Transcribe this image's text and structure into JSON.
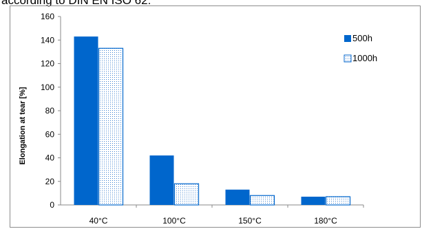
{
  "caption": "according to DIN EN ISO 62:",
  "chart_data": {
    "type": "bar",
    "title": "",
    "xlabel": "",
    "ylabel": "Elongation at tear [%]",
    "categories": [
      "40°C",
      "100°C",
      "150°C",
      "180°C"
    ],
    "series": [
      {
        "name": "500h",
        "values": [
          143,
          42,
          13,
          7
        ],
        "color": "#0066cc",
        "pattern": "solid"
      },
      {
        "name": "1000h",
        "values": [
          133,
          18,
          8,
          7
        ],
        "color": "#0066cc",
        "pattern": "dotted"
      }
    ],
    "ylim": [
      0,
      160
    ],
    "yticks": [
      0,
      20,
      40,
      60,
      80,
      100,
      120,
      140,
      160
    ],
    "grid": false,
    "legend_position": "right"
  }
}
